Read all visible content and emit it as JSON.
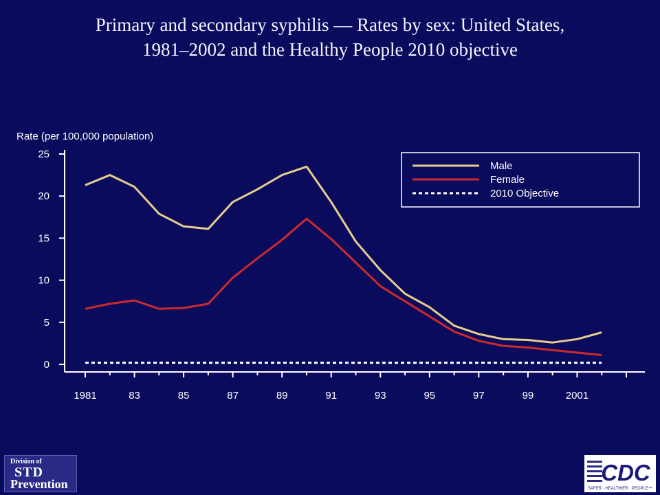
{
  "title_lines": [
    "Primary and secondary syphilis — Rates by sex: United States,",
    "1981–2002 and the Healthy People 2010 objective"
  ],
  "chart_data": {
    "type": "line",
    "title": "Primary and secondary syphilis — Rates by sex: United States, 1981–2002 and the Healthy People 2010 objective",
    "ylabel": "Rate (per 100,000 population)",
    "xlabel": "",
    "x": [
      1981,
      1982,
      1983,
      1984,
      1985,
      1986,
      1987,
      1988,
      1989,
      1990,
      1991,
      1992,
      1993,
      1994,
      1995,
      1996,
      1997,
      1998,
      1999,
      2000,
      2001,
      2002
    ],
    "xlim": [
      1981,
      2003
    ],
    "ylim": [
      0,
      25
    ],
    "yticks": [
      0,
      5,
      10,
      15,
      20,
      25
    ],
    "ytick_labels": [
      "0",
      "5",
      "10",
      "15",
      "20",
      "25"
    ],
    "xticks": [
      1981,
      1983,
      1985,
      1987,
      1989,
      1991,
      1993,
      1995,
      1997,
      1999,
      2001
    ],
    "xtick_labels": [
      "1981",
      "83",
      "85",
      "87",
      "89",
      "91",
      "93",
      "95",
      "97",
      "99",
      "2001"
    ],
    "series": [
      {
        "name": "Male",
        "color": "#e6cf8a",
        "style": "solid",
        "values": [
          21.3,
          22.5,
          21.1,
          17.9,
          16.4,
          16.1,
          19.3,
          20.8,
          22.5,
          23.5,
          19.3,
          14.6,
          11.2,
          8.4,
          6.8,
          4.6,
          3.6,
          3.0,
          2.9,
          2.6,
          3.0,
          3.8
        ]
      },
      {
        "name": "Female",
        "color": "#cc2a2a",
        "style": "solid",
        "values": [
          6.6,
          7.2,
          7.6,
          6.6,
          6.7,
          7.2,
          10.3,
          12.6,
          14.8,
          17.3,
          14.9,
          12.1,
          9.3,
          7.5,
          5.7,
          3.9,
          2.8,
          2.2,
          2.0,
          1.7,
          1.4,
          1.1
        ]
      },
      {
        "name": "2010 Objective",
        "color": "#ffffff",
        "style": "dotted",
        "values": [
          0.2,
          0.2,
          0.2,
          0.2,
          0.2,
          0.2,
          0.2,
          0.2,
          0.2,
          0.2,
          0.2,
          0.2,
          0.2,
          0.2,
          0.2,
          0.2,
          0.2,
          0.2,
          0.2,
          0.2,
          0.2,
          0.2
        ]
      }
    ],
    "legend_position": "top-right",
    "grid": false
  },
  "logos": {
    "std": {
      "line1": "Division of",
      "line2": "STD",
      "line3": "Prevention"
    },
    "cdc": {
      "text": "CDC",
      "tagline": "SAFER · HEALTHIER · PEOPLE™"
    }
  },
  "colors": {
    "background": "#0b0b5e",
    "axis": "#ffffff"
  }
}
